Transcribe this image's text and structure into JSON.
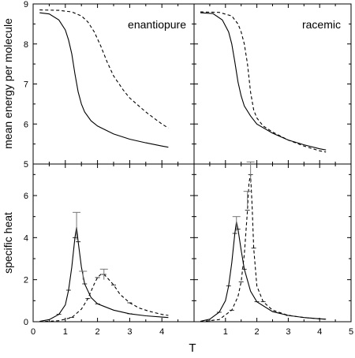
{
  "chart_data": {
    "type": "line",
    "xlabel": "T",
    "x_ticks": [
      "0",
      "1",
      "2",
      "3",
      "4",
      "5"
    ],
    "panels": [
      {
        "position": "top-left",
        "label": "enantiopure",
        "ylabel": "mean energy per molecule",
        "ylim": [
          5,
          9
        ],
        "xlim": [
          0,
          5
        ],
        "y_ticks": [
          "5",
          "6",
          "7",
          "8",
          "9"
        ],
        "show_y_ticks": true,
        "series": [
          {
            "style": "solid",
            "x": [
              0.2,
              0.5,
              0.8,
              1.0,
              1.1,
              1.2,
              1.3,
              1.4,
              1.5,
              1.6,
              1.8,
              2.0,
              2.5,
              3.0,
              3.5,
              4.0,
              4.2
            ],
            "y": [
              8.78,
              8.75,
              8.6,
              8.35,
              8.1,
              7.75,
              7.25,
              6.8,
              6.5,
              6.3,
              6.08,
              5.95,
              5.75,
              5.62,
              5.53,
              5.45,
              5.42
            ]
          },
          {
            "style": "dashed",
            "x": [
              0.2,
              0.8,
              1.2,
              1.5,
              1.7,
              1.9,
              2.1,
              2.3,
              2.5,
              2.8,
              3.0,
              3.5,
              4.0,
              4.2
            ],
            "y": [
              8.85,
              8.84,
              8.8,
              8.7,
              8.55,
              8.3,
              7.95,
              7.55,
              7.2,
              6.85,
              6.65,
              6.3,
              6.0,
              5.9
            ]
          }
        ]
      },
      {
        "position": "top-right",
        "label": "racemic",
        "ylim": [
          5,
          9
        ],
        "xlim": [
          0,
          5
        ],
        "show_y_ticks": false,
        "series": [
          {
            "style": "solid",
            "x": [
              0.2,
              0.6,
              0.9,
              1.1,
              1.2,
              1.3,
              1.4,
              1.5,
              1.6,
              1.8,
              2.0,
              2.5,
              3.0,
              3.5,
              4.0,
              4.2
            ],
            "y": [
              8.78,
              8.76,
              8.6,
              8.3,
              8.0,
              7.55,
              7.05,
              6.7,
              6.45,
              6.2,
              6.0,
              5.77,
              5.6,
              5.48,
              5.38,
              5.35
            ]
          },
          {
            "style": "dashed",
            "x": [
              0.2,
              0.8,
              1.2,
              1.4,
              1.5,
              1.6,
              1.7,
              1.8,
              1.9,
              2.0,
              2.2,
              2.5,
              3.0,
              3.5,
              4.0,
              4.2
            ],
            "y": [
              8.8,
              8.79,
              8.7,
              8.5,
              8.3,
              8.0,
              7.5,
              6.8,
              6.35,
              6.15,
              5.95,
              5.8,
              5.6,
              5.45,
              5.33,
              5.3
            ]
          }
        ]
      },
      {
        "position": "bottom-left",
        "ylabel": "specific heat",
        "ylim": [
          0,
          7.5
        ],
        "xlim": [
          0,
          5
        ],
        "y_ticks": [
          "0",
          "2",
          "4",
          "6"
        ],
        "show_y_ticks": true,
        "show_x_ticks": true,
        "series": [
          {
            "style": "solid",
            "x": [
              0.2,
              0.5,
              0.8,
              1.0,
              1.1,
              1.2,
              1.3,
              1.35,
              1.4,
              1.5,
              1.6,
              1.8,
              2.0,
              2.5,
              3.0,
              3.5,
              4.0,
              4.2
            ],
            "y": [
              0.02,
              0.1,
              0.35,
              0.8,
              1.5,
              2.6,
              4.0,
              4.5,
              3.8,
              2.6,
              1.8,
              1.15,
              0.85,
              0.55,
              0.38,
              0.28,
              0.22,
              0.2
            ]
          },
          {
            "style": "dashed",
            "x": [
              0.2,
              0.8,
              1.2,
              1.5,
              1.7,
              1.9,
              2.0,
              2.1,
              2.2,
              2.3,
              2.5,
              2.7,
              3.0,
              3.3,
              3.6,
              4.0,
              4.2
            ],
            "y": [
              0.0,
              0.05,
              0.2,
              0.6,
              1.1,
              1.8,
              2.1,
              2.25,
              2.25,
              2.1,
              1.75,
              1.3,
              0.9,
              0.65,
              0.5,
              0.35,
              0.3
            ]
          }
        ],
        "error_bars": [
          {
            "x": 1.35,
            "low": 3.9,
            "high": 5.2
          },
          {
            "x": 2.2,
            "low": 2.0,
            "high": 2.5
          },
          {
            "x": 1.55,
            "low": 2.0,
            "high": 2.4
          }
        ]
      },
      {
        "position": "bottom-right",
        "ylim": [
          0,
          7.5
        ],
        "xlim": [
          0,
          5
        ],
        "show_y_ticks": false,
        "show_x_ticks": true,
        "series": [
          {
            "style": "solid",
            "x": [
              0.2,
              0.5,
              0.8,
              1.0,
              1.1,
              1.2,
              1.3,
              1.35,
              1.4,
              1.5,
              1.6,
              1.8,
              2.0,
              2.5,
              3.0,
              3.5,
              4.0,
              4.2
            ],
            "y": [
              0.02,
              0.12,
              0.45,
              1.0,
              1.7,
              2.8,
              4.2,
              4.75,
              4.4,
              3.4,
              2.5,
              1.45,
              0.95,
              0.48,
              0.3,
              0.2,
              0.14,
              0.12
            ]
          },
          {
            "style": "dashed",
            "x": [
              0.2,
              0.8,
              1.2,
              1.4,
              1.5,
              1.6,
              1.7,
              1.75,
              1.8,
              1.85,
              1.9,
              2.0,
              2.2,
              2.5,
              3.0,
              3.5,
              4.0,
              4.2
            ],
            "y": [
              0.0,
              0.1,
              0.55,
              1.2,
              1.9,
              3.2,
              5.3,
              6.6,
              7.0,
              5.5,
              3.5,
              1.7,
              0.95,
              0.55,
              0.3,
              0.2,
              0.14,
              0.12
            ]
          }
        ],
        "error_bars": [
          {
            "x": 1.35,
            "low": 4.3,
            "high": 5.0
          },
          {
            "x": 1.8,
            "low": 6.6,
            "high": 7.6
          },
          {
            "x": 1.7,
            "low": 5.5,
            "high": 6.2
          }
        ]
      }
    ]
  }
}
